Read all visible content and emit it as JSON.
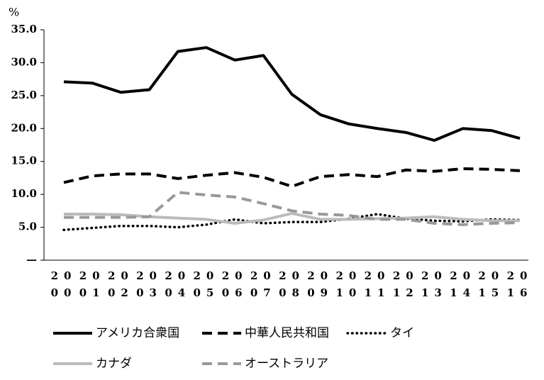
{
  "chart_data": {
    "type": "line",
    "y_label": "%",
    "categories": [
      "2000",
      "2001",
      "2002",
      "2003",
      "2004",
      "2005",
      "2006",
      "2007",
      "2008",
      "2009",
      "2010",
      "2011",
      "2012",
      "2013",
      "2014",
      "2015",
      "2016"
    ],
    "series": [
      {
        "name": "アメリカ合衆国",
        "color": "#000000",
        "dash": "solid",
        "values": [
          27.1,
          26.9,
          25.5,
          25.9,
          31.7,
          32.3,
          30.4,
          31.1,
          25.2,
          22.1,
          20.7,
          20.0,
          19.4,
          18.2,
          20.0,
          19.7,
          18.5
        ]
      },
      {
        "name": "中華人民共和国",
        "color": "#000000",
        "dash": "dashed",
        "values": [
          11.8,
          12.8,
          13.1,
          13.1,
          12.4,
          12.9,
          13.3,
          12.6,
          11.2,
          12.7,
          13.0,
          12.7,
          13.7,
          13.5,
          13.9,
          13.8,
          13.6
        ]
      },
      {
        "name": "タイ",
        "color": "#000000",
        "dash": "dotted",
        "values": [
          4.6,
          4.9,
          5.2,
          5.2,
          5.0,
          5.4,
          6.2,
          5.6,
          5.8,
          5.8,
          6.3,
          7.0,
          6.3,
          6.0,
          5.9,
          6.2,
          6.1
        ]
      },
      {
        "name": "カナダ",
        "color": "#bbbbbb",
        "dash": "solid",
        "values": [
          7.0,
          7.0,
          6.9,
          6.6,
          6.4,
          6.2,
          5.6,
          6.1,
          7.1,
          6.2,
          6.2,
          6.3,
          6.4,
          6.6,
          6.2,
          6.0,
          6.0
        ]
      },
      {
        "name": "オーストラリア",
        "color": "#999999",
        "dash": "dashed",
        "values": [
          6.5,
          6.5,
          6.5,
          6.6,
          10.3,
          9.9,
          9.6,
          8.6,
          7.5,
          7.0,
          6.8,
          6.2,
          6.2,
          5.6,
          5.4,
          5.6,
          5.7
        ]
      }
    ],
    "ylim": [
      0,
      35
    ],
    "yticks": [
      {
        "value": 0,
        "label": "—"
      },
      {
        "value": 5,
        "label": "5.0"
      },
      {
        "value": 10,
        "label": "10.0"
      },
      {
        "value": 15,
        "label": "15.0"
      },
      {
        "value": 20,
        "label": "20.0"
      },
      {
        "value": 25,
        "label": "25.0"
      },
      {
        "value": 30,
        "label": "30.0"
      },
      {
        "value": 35,
        "label": "35.0"
      }
    ],
    "grid": false,
    "legend": "bottom"
  }
}
